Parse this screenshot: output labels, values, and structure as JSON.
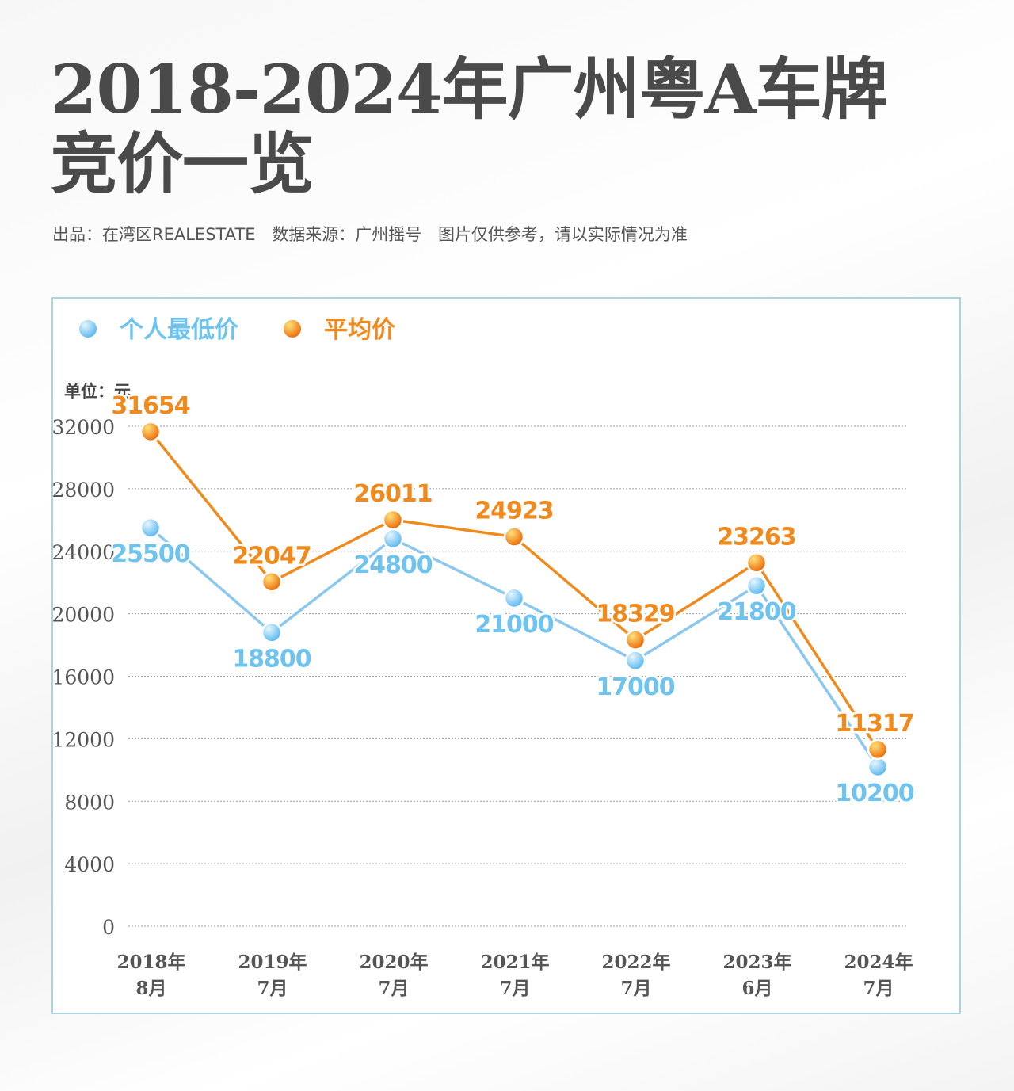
{
  "header": {
    "title_line1": "2018-2024年广州粤A车牌",
    "title_line2": "竞价一览",
    "publisher": "出品：在湾区REALESTATE",
    "source": "数据来源：广州摇号",
    "disclaimer": "图片仅供参考，请以实际情况为准"
  },
  "chart_data": {
    "type": "line",
    "unit_label": "单位：元",
    "categories": [
      [
        "2018年",
        "8月"
      ],
      [
        "2019年",
        "7月"
      ],
      [
        "2020年",
        "7月"
      ],
      [
        "2021年",
        "7月"
      ],
      [
        "2022年",
        "7月"
      ],
      [
        "2023年",
        "6月"
      ],
      [
        "2024年",
        "7月"
      ]
    ],
    "ylim": [
      0,
      32000
    ],
    "yticks": [
      0,
      4000,
      8000,
      12000,
      16000,
      20000,
      24000,
      28000,
      32000
    ],
    "grid": true,
    "legend_position": "top-left",
    "series": [
      {
        "name": "个人最低价",
        "color": "#8cc8ee",
        "label_color": "#6ec3ef",
        "values": [
          25500,
          18800,
          24800,
          21000,
          17000,
          21800,
          10200
        ]
      },
      {
        "name": "平均价",
        "color": "#f08a1c",
        "label_color": "#f08a1c",
        "values": [
          31654,
          22047,
          26011,
          24923,
          18329,
          23263,
          11317
        ]
      }
    ]
  }
}
